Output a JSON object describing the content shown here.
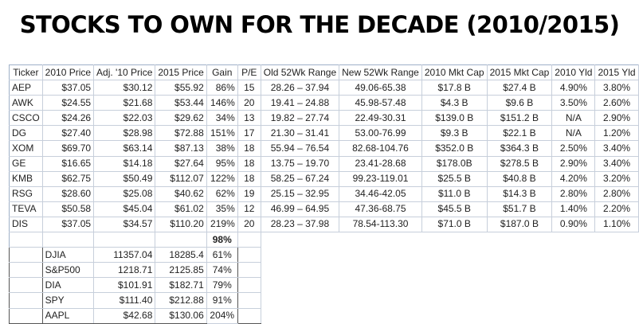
{
  "title": "STOCKS TO OWN FOR THE DECADE (2010/2015)",
  "headers": [
    "Ticker",
    "2010 Price",
    "Adj. '10 Price",
    "2015 Price",
    "Gain",
    "P/E",
    "Old 52Wk Range",
    "New 52Wk Range",
    "2010 Mkt Cap",
    "2015 Mkt Cap",
    "2010 Yld",
    "2015 Yld"
  ],
  "stocks": [
    [
      "AEP",
      "$37.05",
      "$30.12",
      "$55.92",
      "86%",
      "15",
      "28.26 – 37.94",
      "49.06-65.38",
      "$17.8 B",
      "$27.4 B",
      "4.90%",
      "3.80%"
    ],
    [
      "AWK",
      "$24.55",
      "$21.68",
      "$53.44",
      "146%",
      "20",
      "19.41 – 24.88",
      "45.98-57.48",
      "$4.3 B",
      "$9.6 B",
      "3.50%",
      "2.60%"
    ],
    [
      "CSCO",
      "$24.26",
      "$22.03",
      "$29.62",
      "34%",
      "13",
      "19.82 – 27.74",
      "22.49-30.31",
      "$139.0 B",
      "$151.2 B",
      "N/A",
      "2.90%"
    ],
    [
      "DG",
      "$27.40",
      "$28.98",
      "$72.88",
      "151%",
      "17",
      "21.30 – 31.41",
      "53.00-76.99",
      "$9.3 B",
      "$22.1 B",
      "N/A",
      "1.20%"
    ],
    [
      "XOM",
      "$69.70",
      "$63.14",
      "$87.13",
      "38%",
      "18",
      "55.94 – 76.54",
      "82.68-104.76",
      "$352.0 B",
      "$364.3 B",
      "2.50%",
      "3.40%"
    ],
    [
      "GE",
      "$16.65",
      "$14.18",
      "$27.64",
      "95%",
      "18",
      "13.75 – 19.70",
      "23.41-28.68",
      "$178.0B",
      "$278.5 B",
      "2.90%",
      "3.40%"
    ],
    [
      "KMB",
      "$62.75",
      "$50.49",
      "$112.07",
      "122%",
      "18",
      "58.25 – 67.24",
      "99.23-119.01",
      "$25.5 B",
      "$40.8 B",
      "4.20%",
      "3.20%"
    ],
    [
      "RSG",
      "$28.60",
      "$25.08",
      "$40.62",
      "62%",
      "19",
      "25.15 – 32.95",
      "34.46-42.05",
      "$11.0 B",
      "$14.3 B",
      "2.80%",
      "2.80%"
    ],
    [
      "TEVA",
      "$50.58",
      "$45.04",
      "$61.02",
      "35%",
      "12",
      "46.99 – 64.95",
      "47.36-68.75",
      "$45.5 B",
      "$51.7 B",
      "1.40%",
      "2.20%"
    ],
    [
      "DIS",
      "$37.05",
      "$34.57",
      "$110.20",
      "219%",
      "20",
      "28.23 – 37.98",
      "78.54-113.30",
      "$71.0 B",
      "$187.0 B",
      "0.90%",
      "1.10%"
    ]
  ],
  "total_gain": "98%",
  "benchmarks": [
    [
      "DJIA",
      "11357.04",
      "18285.4",
      "61%"
    ],
    [
      "S&P500",
      "1218.71",
      "2125.85",
      "74%"
    ],
    [
      "DIA",
      "$101.91",
      "$182.71",
      "79%"
    ],
    [
      "SPY",
      "$111.40",
      "$212.88",
      "91%"
    ],
    [
      "AAPL",
      "$42.68",
      "$130.06",
      "204%"
    ]
  ]
}
